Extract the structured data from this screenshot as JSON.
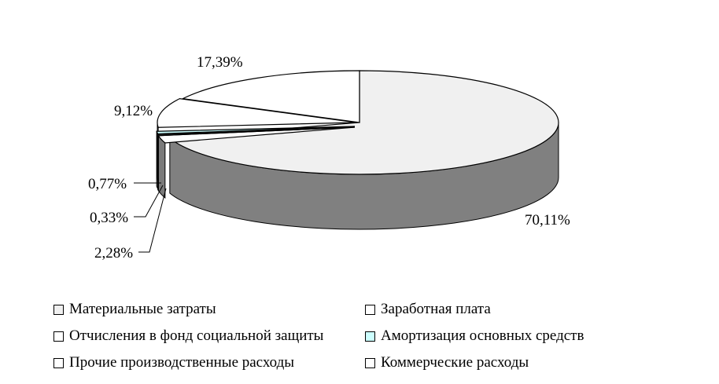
{
  "chart_data": {
    "type": "pie",
    "title": "",
    "style": "3d-exploded",
    "slices": [
      {
        "label": "Материальные затраты",
        "value": 70.11,
        "value_label": "70,11%",
        "color": "#f0f0f0",
        "side_color": "#808080"
      },
      {
        "label": "Заработная плата",
        "value": 2.28,
        "value_label": "2,28%",
        "color": "#ffffff",
        "side_color": "#7a7a7a"
      },
      {
        "label": "Отчисления в фонд социальной защиты",
        "value": 0.33,
        "value_label": "0,33%",
        "color": "#ffffff",
        "side_color": "#7a7a7a"
      },
      {
        "label": "Амортизация основных средств",
        "value": 0.77,
        "value_label": "0,77%",
        "color": "#ccffff",
        "side_color": "#7a7a7a"
      },
      {
        "label": "Прочие производственные расходы",
        "value": 9.12,
        "value_label": "9,12%",
        "color": "#ffffff",
        "side_color": "#7a7a7a"
      },
      {
        "label": "Коммерческие расходы",
        "value": 17.39,
        "value_label": "17,39%",
        "color": "#ffffff",
        "side_color": "#7a7a7a"
      }
    ],
    "legend": {
      "position": "bottom",
      "items": [
        {
          "label": "Материальные затраты",
          "color": "#f0f0f0"
        },
        {
          "label": "Заработная плата",
          "color": "#ffffff"
        },
        {
          "label": "Отчисления в фонд социальной защиты",
          "color": "#ffffff"
        },
        {
          "label": "Амортизация основных средств",
          "color": "#ccffff"
        },
        {
          "label": "Прочие производственные расходы",
          "color": "#ffffff"
        },
        {
          "label": "Коммерческие расходы",
          "color": "#ffffff"
        }
      ]
    }
  }
}
